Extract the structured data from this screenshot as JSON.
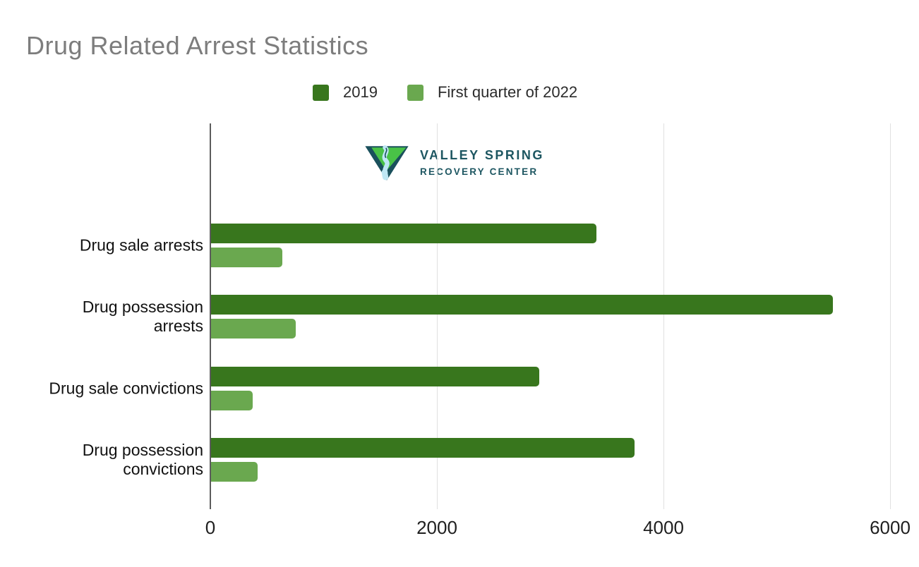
{
  "title": "Drug Related Arrest Statistics",
  "legend": [
    {
      "label": "2019",
      "color": "#38761d"
    },
    {
      "label": "First quarter of 2022",
      "color": "#6aa84f"
    }
  ],
  "watermark": {
    "line1": "VALLEY SPRING",
    "line2": "RECOVERY CENTER"
  },
  "colors": {
    "series_2019": "#38761d",
    "series_q1_2022": "#6aa84f",
    "title_text": "#7d7d7d",
    "axis_line": "#5c5c5c",
    "gridline": "#e0e0e0",
    "logo_teal": "#1a505c",
    "logo_green": "#49c247",
    "logo_river": "#bfe7f4"
  },
  "chart_data": {
    "type": "bar",
    "orientation": "horizontal",
    "title": "Drug Related Arrest Statistics",
    "categories": [
      "Drug sale arrests",
      "Drug possession arrests",
      "Drug sale convictions",
      "Drug possession convictions"
    ],
    "series": [
      {
        "name": "2019",
        "color": "#38761d",
        "values": [
          3400,
          5490,
          2900,
          3740
        ]
      },
      {
        "name": "First quarter of 2022",
        "color": "#6aa84f",
        "values": [
          630,
          750,
          370,
          410
        ]
      }
    ],
    "x_axis": {
      "min": 0,
      "max": 6000,
      "ticks": [
        0,
        2000,
        4000,
        6000
      ],
      "tick_labels": [
        "0",
        "2000",
        "4000",
        "6000"
      ],
      "grid": true
    },
    "legend_position": "top-center",
    "xlabel": "",
    "ylabel": ""
  }
}
